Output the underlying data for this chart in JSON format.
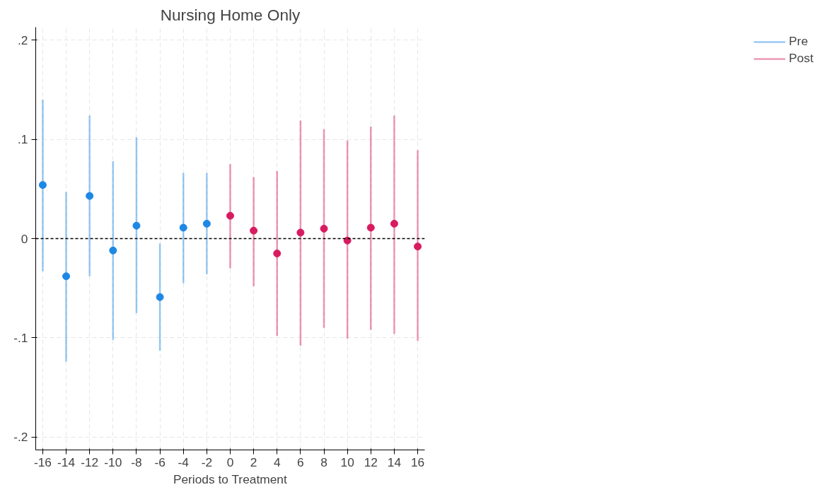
{
  "chart_data": {
    "type": "scatter",
    "title": "Nursing Home Only",
    "xlabel": "Periods to Treatment",
    "series": [
      {
        "name": "Pre",
        "color": "#1e88e5",
        "x": [
          -16,
          -14,
          -12,
          -10,
          -8,
          -6,
          -4,
          -2
        ],
        "values": [
          0.054,
          -0.038,
          0.043,
          -0.012,
          0.013,
          -0.059,
          0.011,
          0.015
        ],
        "errors": [
          [
            -0.033,
            0.14
          ],
          [
            -0.124,
            0.047
          ],
          [
            -0.038,
            0.124
          ],
          [
            -0.102,
            0.078
          ],
          [
            -0.075,
            0.102
          ],
          [
            -0.113,
            -0.005
          ],
          [
            -0.045,
            0.066
          ],
          [
            -0.036,
            0.066
          ]
        ]
      },
      {
        "name": "Post",
        "color": "#d81b60",
        "x": [
          0,
          2,
          4,
          6,
          8,
          10,
          12,
          14,
          16
        ],
        "values": [
          0.023,
          0.008,
          -0.015,
          0.006,
          0.01,
          -0.002,
          0.011,
          0.015,
          -0.008
        ],
        "errors": [
          [
            -0.03,
            0.075
          ],
          [
            -0.048,
            0.062
          ],
          [
            -0.098,
            0.068
          ],
          [
            -0.108,
            0.119
          ],
          [
            -0.09,
            0.11
          ],
          [
            -0.101,
            0.099
          ],
          [
            -0.092,
            0.113
          ],
          [
            -0.096,
            0.124
          ],
          [
            -0.103,
            0.089
          ]
        ]
      }
    ],
    "xlim": [
      -16.6,
      16.6
    ],
    "xticks": [
      -16,
      -14,
      -12,
      -10,
      -8,
      -6,
      -4,
      -2,
      0,
      2,
      4,
      6,
      8,
      10,
      12,
      14,
      16
    ],
    "ylim": [
      -0.213,
      0.213
    ],
    "yticks": [
      {
        "value": -0.2,
        "label": "-.2"
      },
      {
        "value": -0.1,
        "label": "-.1"
      },
      0,
      {
        "value": 0.1,
        "label": ".1"
      },
      {
        "value": 0.2,
        "label": ".2"
      }
    ],
    "ref_lines": [
      {
        "axis": "y",
        "value": 0,
        "color": "#000000",
        "line_style": "dashed"
      }
    ],
    "grid": true,
    "legend": "right",
    "marker": "circle"
  }
}
